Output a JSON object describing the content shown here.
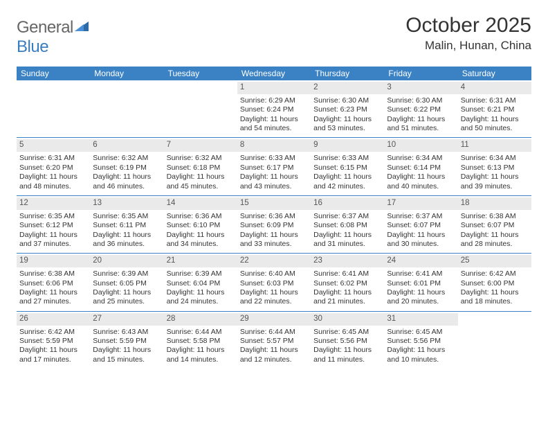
{
  "brand": {
    "part1": "General",
    "part2": "Blue"
  },
  "title": "October 2025",
  "location": "Malin, Hunan, China",
  "colors": {
    "header_bg": "#3b82c4",
    "header_text": "#ffffff",
    "daynum_bg": "#eaeaea",
    "text": "#333333",
    "rule": "#3b82c4",
    "background": "#ffffff"
  },
  "typography": {
    "title_fontsize": 30,
    "location_fontsize": 17,
    "dayheader_fontsize": 12,
    "body_fontsize": 10.5,
    "font_family": "Arial"
  },
  "dayNames": [
    "Sunday",
    "Monday",
    "Tuesday",
    "Wednesday",
    "Thursday",
    "Friday",
    "Saturday"
  ],
  "weeks": [
    [
      {
        "day": "",
        "sunrise": "",
        "sunset": "",
        "daylight": ""
      },
      {
        "day": "",
        "sunrise": "",
        "sunset": "",
        "daylight": ""
      },
      {
        "day": "",
        "sunrise": "",
        "sunset": "",
        "daylight": ""
      },
      {
        "day": "1",
        "sunrise": "Sunrise: 6:29 AM",
        "sunset": "Sunset: 6:24 PM",
        "daylight": "Daylight: 11 hours and 54 minutes."
      },
      {
        "day": "2",
        "sunrise": "Sunrise: 6:30 AM",
        "sunset": "Sunset: 6:23 PM",
        "daylight": "Daylight: 11 hours and 53 minutes."
      },
      {
        "day": "3",
        "sunrise": "Sunrise: 6:30 AM",
        "sunset": "Sunset: 6:22 PM",
        "daylight": "Daylight: 11 hours and 51 minutes."
      },
      {
        "day": "4",
        "sunrise": "Sunrise: 6:31 AM",
        "sunset": "Sunset: 6:21 PM",
        "daylight": "Daylight: 11 hours and 50 minutes."
      }
    ],
    [
      {
        "day": "5",
        "sunrise": "Sunrise: 6:31 AM",
        "sunset": "Sunset: 6:20 PM",
        "daylight": "Daylight: 11 hours and 48 minutes."
      },
      {
        "day": "6",
        "sunrise": "Sunrise: 6:32 AM",
        "sunset": "Sunset: 6:19 PM",
        "daylight": "Daylight: 11 hours and 46 minutes."
      },
      {
        "day": "7",
        "sunrise": "Sunrise: 6:32 AM",
        "sunset": "Sunset: 6:18 PM",
        "daylight": "Daylight: 11 hours and 45 minutes."
      },
      {
        "day": "8",
        "sunrise": "Sunrise: 6:33 AM",
        "sunset": "Sunset: 6:17 PM",
        "daylight": "Daylight: 11 hours and 43 minutes."
      },
      {
        "day": "9",
        "sunrise": "Sunrise: 6:33 AM",
        "sunset": "Sunset: 6:15 PM",
        "daylight": "Daylight: 11 hours and 42 minutes."
      },
      {
        "day": "10",
        "sunrise": "Sunrise: 6:34 AM",
        "sunset": "Sunset: 6:14 PM",
        "daylight": "Daylight: 11 hours and 40 minutes."
      },
      {
        "day": "11",
        "sunrise": "Sunrise: 6:34 AM",
        "sunset": "Sunset: 6:13 PM",
        "daylight": "Daylight: 11 hours and 39 minutes."
      }
    ],
    [
      {
        "day": "12",
        "sunrise": "Sunrise: 6:35 AM",
        "sunset": "Sunset: 6:12 PM",
        "daylight": "Daylight: 11 hours and 37 minutes."
      },
      {
        "day": "13",
        "sunrise": "Sunrise: 6:35 AM",
        "sunset": "Sunset: 6:11 PM",
        "daylight": "Daylight: 11 hours and 36 minutes."
      },
      {
        "day": "14",
        "sunrise": "Sunrise: 6:36 AM",
        "sunset": "Sunset: 6:10 PM",
        "daylight": "Daylight: 11 hours and 34 minutes."
      },
      {
        "day": "15",
        "sunrise": "Sunrise: 6:36 AM",
        "sunset": "Sunset: 6:09 PM",
        "daylight": "Daylight: 11 hours and 33 minutes."
      },
      {
        "day": "16",
        "sunrise": "Sunrise: 6:37 AM",
        "sunset": "Sunset: 6:08 PM",
        "daylight": "Daylight: 11 hours and 31 minutes."
      },
      {
        "day": "17",
        "sunrise": "Sunrise: 6:37 AM",
        "sunset": "Sunset: 6:07 PM",
        "daylight": "Daylight: 11 hours and 30 minutes."
      },
      {
        "day": "18",
        "sunrise": "Sunrise: 6:38 AM",
        "sunset": "Sunset: 6:07 PM",
        "daylight": "Daylight: 11 hours and 28 minutes."
      }
    ],
    [
      {
        "day": "19",
        "sunrise": "Sunrise: 6:38 AM",
        "sunset": "Sunset: 6:06 PM",
        "daylight": "Daylight: 11 hours and 27 minutes."
      },
      {
        "day": "20",
        "sunrise": "Sunrise: 6:39 AM",
        "sunset": "Sunset: 6:05 PM",
        "daylight": "Daylight: 11 hours and 25 minutes."
      },
      {
        "day": "21",
        "sunrise": "Sunrise: 6:39 AM",
        "sunset": "Sunset: 6:04 PM",
        "daylight": "Daylight: 11 hours and 24 minutes."
      },
      {
        "day": "22",
        "sunrise": "Sunrise: 6:40 AM",
        "sunset": "Sunset: 6:03 PM",
        "daylight": "Daylight: 11 hours and 22 minutes."
      },
      {
        "day": "23",
        "sunrise": "Sunrise: 6:41 AM",
        "sunset": "Sunset: 6:02 PM",
        "daylight": "Daylight: 11 hours and 21 minutes."
      },
      {
        "day": "24",
        "sunrise": "Sunrise: 6:41 AM",
        "sunset": "Sunset: 6:01 PM",
        "daylight": "Daylight: 11 hours and 20 minutes."
      },
      {
        "day": "25",
        "sunrise": "Sunrise: 6:42 AM",
        "sunset": "Sunset: 6:00 PM",
        "daylight": "Daylight: 11 hours and 18 minutes."
      }
    ],
    [
      {
        "day": "26",
        "sunrise": "Sunrise: 6:42 AM",
        "sunset": "Sunset: 5:59 PM",
        "daylight": "Daylight: 11 hours and 17 minutes."
      },
      {
        "day": "27",
        "sunrise": "Sunrise: 6:43 AM",
        "sunset": "Sunset: 5:59 PM",
        "daylight": "Daylight: 11 hours and 15 minutes."
      },
      {
        "day": "28",
        "sunrise": "Sunrise: 6:44 AM",
        "sunset": "Sunset: 5:58 PM",
        "daylight": "Daylight: 11 hours and 14 minutes."
      },
      {
        "day": "29",
        "sunrise": "Sunrise: 6:44 AM",
        "sunset": "Sunset: 5:57 PM",
        "daylight": "Daylight: 11 hours and 12 minutes."
      },
      {
        "day": "30",
        "sunrise": "Sunrise: 6:45 AM",
        "sunset": "Sunset: 5:56 PM",
        "daylight": "Daylight: 11 hours and 11 minutes."
      },
      {
        "day": "31",
        "sunrise": "Sunrise: 6:45 AM",
        "sunset": "Sunset: 5:56 PM",
        "daylight": "Daylight: 11 hours and 10 minutes."
      },
      {
        "day": "",
        "sunrise": "",
        "sunset": "",
        "daylight": ""
      }
    ]
  ]
}
